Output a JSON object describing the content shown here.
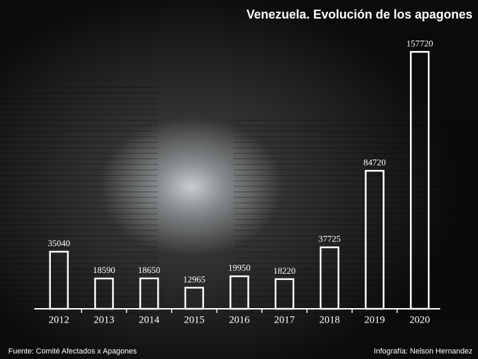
{
  "chart_data": {
    "type": "bar",
    "title": "Venezuela.  Evolución de los apagones",
    "categories": [
      "2012",
      "2013",
      "2014",
      "2015",
      "2016",
      "2017",
      "2018",
      "2019",
      "2020"
    ],
    "values": [
      35040,
      18590,
      18650,
      12965,
      19950,
      18220,
      37725,
      84720,
      157720
    ],
    "color": "#ffffff",
    "ylim": [
      0,
      160000
    ],
    "source": "Fuente: Comité Afectados x Apagones",
    "credit": "Infografía: Nelson Hernandez"
  }
}
